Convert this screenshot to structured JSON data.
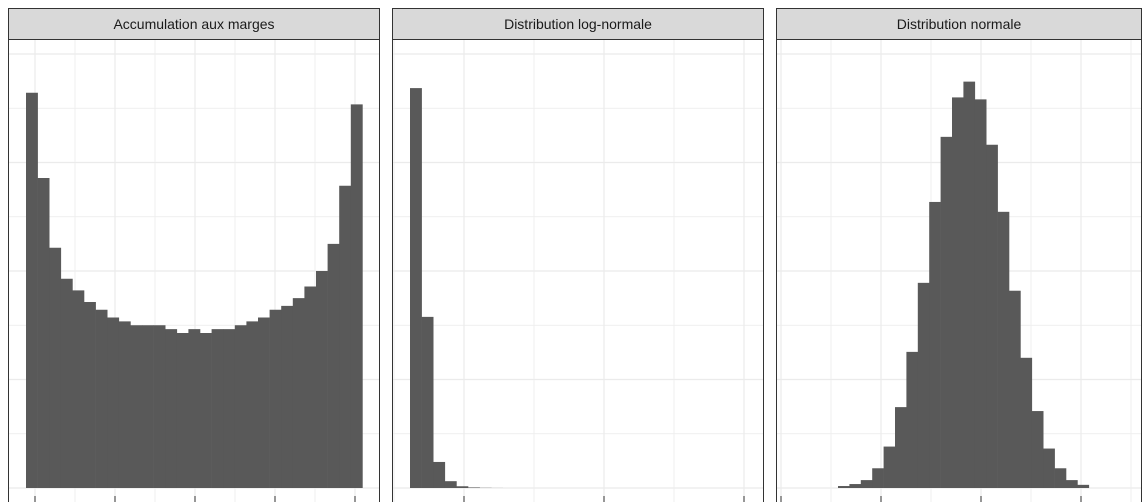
{
  "chart_data": [
    {
      "type": "bar",
      "title": "Accumulation aux marges",
      "xlabel": "",
      "ylabel": "",
      "grid": true,
      "bins": 30,
      "xlim": [
        0,
        1
      ],
      "ylim": [
        0,
        112
      ],
      "values": [
        102,
        80,
        62,
        54,
        51,
        48,
        46,
        44,
        43,
        42,
        42,
        42,
        41,
        40,
        41,
        40,
        41,
        41,
        42,
        43,
        44,
        46,
        47,
        49,
        52,
        56,
        63,
        78,
        99,
        0
      ]
    },
    {
      "type": "bar",
      "title": "Distribution log-normale",
      "xlabel": "",
      "ylabel": "",
      "grid": true,
      "bins": 30,
      "xlim": [
        0,
        30
      ],
      "ylim": [
        0,
        7000
      ],
      "values": [
        6450,
        2760,
        420,
        110,
        28,
        9,
        3,
        1,
        0,
        0,
        0,
        0,
        0,
        0,
        0,
        0,
        0,
        0,
        0,
        0,
        0,
        0,
        0,
        0,
        0,
        0,
        0,
        0,
        0,
        0
      ]
    },
    {
      "type": "bar",
      "title": "Distribution normale",
      "xlabel": "",
      "ylabel": "",
      "grid": true,
      "bins": 30,
      "xlim": [
        -4.5,
        4.5
      ],
      "ylim": [
        0,
        1100
      ],
      "values": [
        0,
        0,
        0,
        0,
        0,
        5,
        10,
        20,
        50,
        105,
        205,
        345,
        520,
        725,
        890,
        990,
        1030,
        985,
        870,
        700,
        500,
        330,
        195,
        100,
        50,
        20,
        8,
        0,
        0,
        0
      ]
    }
  ],
  "colors": {
    "bar": "#595959",
    "grid": "#ebebeb",
    "strip_fill": "#d9d9d9",
    "panel_border": "#333333"
  }
}
